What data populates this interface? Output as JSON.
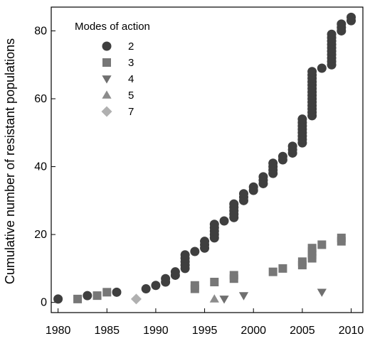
{
  "chart_data": {
    "type": "scatter",
    "title": "",
    "xlabel": "",
    "ylabel": "Cumulative number of resistant populations",
    "xlim": [
      1979.3,
      2011.2
    ],
    "ylim": [
      -3,
      87
    ],
    "x_ticks": [
      "1980",
      "1985",
      "1990",
      "1995",
      "2000",
      "2005",
      "2010"
    ],
    "x_tick_values": [
      1980,
      1985,
      1990,
      1995,
      2000,
      2005,
      2010
    ],
    "y_ticks": [
      "0",
      "20",
      "40",
      "60",
      "80"
    ],
    "y_tick_values": [
      0,
      20,
      40,
      60,
      80
    ],
    "grid": false,
    "legend": {
      "title": "Modes of action",
      "placement": "top-left"
    },
    "series": [
      {
        "name": "2",
        "marker": "circle",
        "color": "#3f3f3f",
        "points": [
          [
            1980,
            1
          ],
          [
            1983,
            2
          ],
          [
            1986,
            3
          ],
          [
            1989,
            4
          ],
          [
            1990,
            5
          ],
          [
            1991,
            6
          ],
          [
            1991,
            7
          ],
          [
            1992,
            8
          ],
          [
            1992,
            9
          ],
          [
            1993,
            10
          ],
          [
            1993,
            11
          ],
          [
            1993,
            12
          ],
          [
            1993,
            13
          ],
          [
            1993,
            14
          ],
          [
            1994,
            15
          ],
          [
            1995,
            16
          ],
          [
            1995,
            17
          ],
          [
            1995,
            18
          ],
          [
            1996,
            19
          ],
          [
            1996,
            20
          ],
          [
            1996,
            21
          ],
          [
            1996,
            22
          ],
          [
            1996,
            23
          ],
          [
            1997,
            24
          ],
          [
            1998,
            25
          ],
          [
            1998,
            26
          ],
          [
            1998,
            27
          ],
          [
            1998,
            28
          ],
          [
            1998,
            29
          ],
          [
            1999,
            30
          ],
          [
            1999,
            31
          ],
          [
            1999,
            32
          ],
          [
            2000,
            33
          ],
          [
            2000,
            34
          ],
          [
            2001,
            35
          ],
          [
            2001,
            36
          ],
          [
            2001,
            37
          ],
          [
            2002,
            38
          ],
          [
            2002,
            39
          ],
          [
            2002,
            40
          ],
          [
            2002,
            41
          ],
          [
            2003,
            42
          ],
          [
            2003,
            43
          ],
          [
            2004,
            44
          ],
          [
            2004,
            45
          ],
          [
            2004,
            46
          ],
          [
            2005,
            47
          ],
          [
            2005,
            48
          ],
          [
            2005,
            49
          ],
          [
            2005,
            50
          ],
          [
            2005,
            51
          ],
          [
            2005,
            52
          ],
          [
            2005,
            53
          ],
          [
            2005,
            54
          ],
          [
            2006,
            55
          ],
          [
            2006,
            56
          ],
          [
            2006,
            57
          ],
          [
            2006,
            58
          ],
          [
            2006,
            59
          ],
          [
            2006,
            60
          ],
          [
            2006,
            61
          ],
          [
            2006,
            62
          ],
          [
            2006,
            63
          ],
          [
            2006,
            64
          ],
          [
            2006,
            65
          ],
          [
            2006,
            66
          ],
          [
            2006,
            67
          ],
          [
            2006,
            68
          ],
          [
            2007,
            69
          ],
          [
            2008,
            70
          ],
          [
            2008,
            71
          ],
          [
            2008,
            72
          ],
          [
            2008,
            73
          ],
          [
            2008,
            74
          ],
          [
            2008,
            75
          ],
          [
            2008,
            76
          ],
          [
            2008,
            77
          ],
          [
            2008,
            78
          ],
          [
            2008,
            79
          ],
          [
            2009,
            80
          ],
          [
            2009,
            81
          ],
          [
            2009,
            82
          ],
          [
            2010,
            83
          ],
          [
            2010,
            84
          ]
        ]
      },
      {
        "name": "3",
        "marker": "square",
        "color": "#777777",
        "points": [
          [
            1982,
            1
          ],
          [
            1984,
            2
          ],
          [
            1985,
            3
          ],
          [
            1994,
            4
          ],
          [
            1994,
            5
          ],
          [
            1996,
            6
          ],
          [
            1998,
            7
          ],
          [
            1998,
            8
          ],
          [
            2002,
            9
          ],
          [
            2003,
            10
          ],
          [
            2005,
            11
          ],
          [
            2005,
            12
          ],
          [
            2006,
            13
          ],
          [
            2006,
            14
          ],
          [
            2006,
            15
          ],
          [
            2006,
            16
          ],
          [
            2007,
            17
          ],
          [
            2009,
            18
          ],
          [
            2009,
            19
          ]
        ]
      },
      {
        "name": "4",
        "marker": "triangle-down",
        "color": "#6f6f6f",
        "points": [
          [
            1997,
            1
          ],
          [
            1999,
            2
          ],
          [
            2007,
            3
          ]
        ]
      },
      {
        "name": "5",
        "marker": "triangle-up",
        "color": "#8c8c8c",
        "points": [
          [
            1996,
            1
          ]
        ]
      },
      {
        "name": "7",
        "marker": "diamond",
        "color": "#b0b0b0",
        "points": [
          [
            1988,
            1
          ]
        ]
      }
    ]
  }
}
